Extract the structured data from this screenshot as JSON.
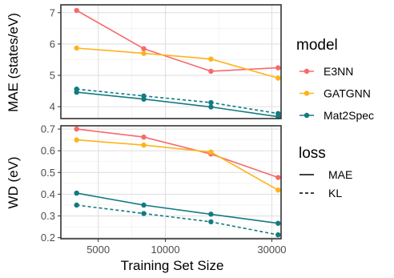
{
  "chart_data": {
    "type": "line",
    "x_scale": "log",
    "xlabel": "Training Set Size",
    "x_ticks": [
      5000,
      10000,
      30000
    ],
    "x_tick_labels": [
      "5000",
      "10000",
      "30000"
    ],
    "xlim": [
      3400,
      33000
    ],
    "grid": true,
    "legend_position": "right",
    "panels": [
      {
        "ylabel": "MAE (states/eV)",
        "ylim": [
          3.62,
          7.25
        ],
        "y_ticks": [
          4,
          5,
          6,
          7
        ],
        "y_tick_labels": [
          "4",
          "5",
          "6",
          "7"
        ],
        "series": [
          {
            "model": "E3NN",
            "loss": "MAE",
            "x": [
              4000,
              8000,
              16000,
              32000
            ],
            "y": [
              7.07,
              5.85,
              5.13,
              5.24
            ]
          },
          {
            "model": "GATGNN",
            "loss": "MAE",
            "x": [
              4000,
              8000,
              16000,
              32000
            ],
            "y": [
              5.87,
              5.7,
              5.52,
              4.91
            ]
          },
          {
            "model": "Mat2Spec",
            "loss": "MAE",
            "x": [
              4000,
              8000,
              16000,
              32000
            ],
            "y": [
              4.46,
              4.24,
              3.99,
              3.68
            ]
          },
          {
            "model": "Mat2Spec",
            "loss": "KL",
            "x": [
              4000,
              8000,
              16000,
              32000
            ],
            "y": [
              4.56,
              4.34,
              4.13,
              3.78
            ]
          }
        ]
      },
      {
        "ylabel": "WD (eV)",
        "ylim": [
          0.195,
          0.715
        ],
        "y_ticks": [
          0.2,
          0.3,
          0.4,
          0.5,
          0.6,
          0.7
        ],
        "y_tick_labels": [
          "0.2",
          "0.3",
          "0.4",
          "0.5",
          "0.6",
          "0.7"
        ],
        "series": [
          {
            "model": "E3NN",
            "loss": "MAE",
            "x": [
              4000,
              8000,
              16000,
              32000
            ],
            "y": [
              0.7,
              0.663,
              0.585,
              0.477
            ]
          },
          {
            "model": "GATGNN",
            "loss": "MAE",
            "x": [
              4000,
              8000,
              16000,
              32000
            ],
            "y": [
              0.65,
              0.626,
              0.594,
              0.419
            ]
          },
          {
            "model": "Mat2Spec",
            "loss": "MAE",
            "x": [
              4000,
              8000,
              16000,
              32000
            ],
            "y": [
              0.405,
              0.35,
              0.308,
              0.266
            ]
          },
          {
            "model": "Mat2Spec",
            "loss": "KL",
            "x": [
              4000,
              8000,
              16000,
              32000
            ],
            "y": [
              0.35,
              0.311,
              0.273,
              0.213
            ]
          }
        ]
      }
    ],
    "legends": {
      "model": {
        "title": "model",
        "entries": [
          {
            "label": "E3NN",
            "color": "#f8696b"
          },
          {
            "label": "GATGNN",
            "color": "#ffb31a"
          },
          {
            "label": "Mat2Spec",
            "color": "#127b82"
          }
        ]
      },
      "loss": {
        "title": "loss",
        "entries": [
          {
            "label": "MAE",
            "linetype": "solid"
          },
          {
            "label": "KL",
            "linetype": "dashed"
          }
        ]
      }
    }
  }
}
